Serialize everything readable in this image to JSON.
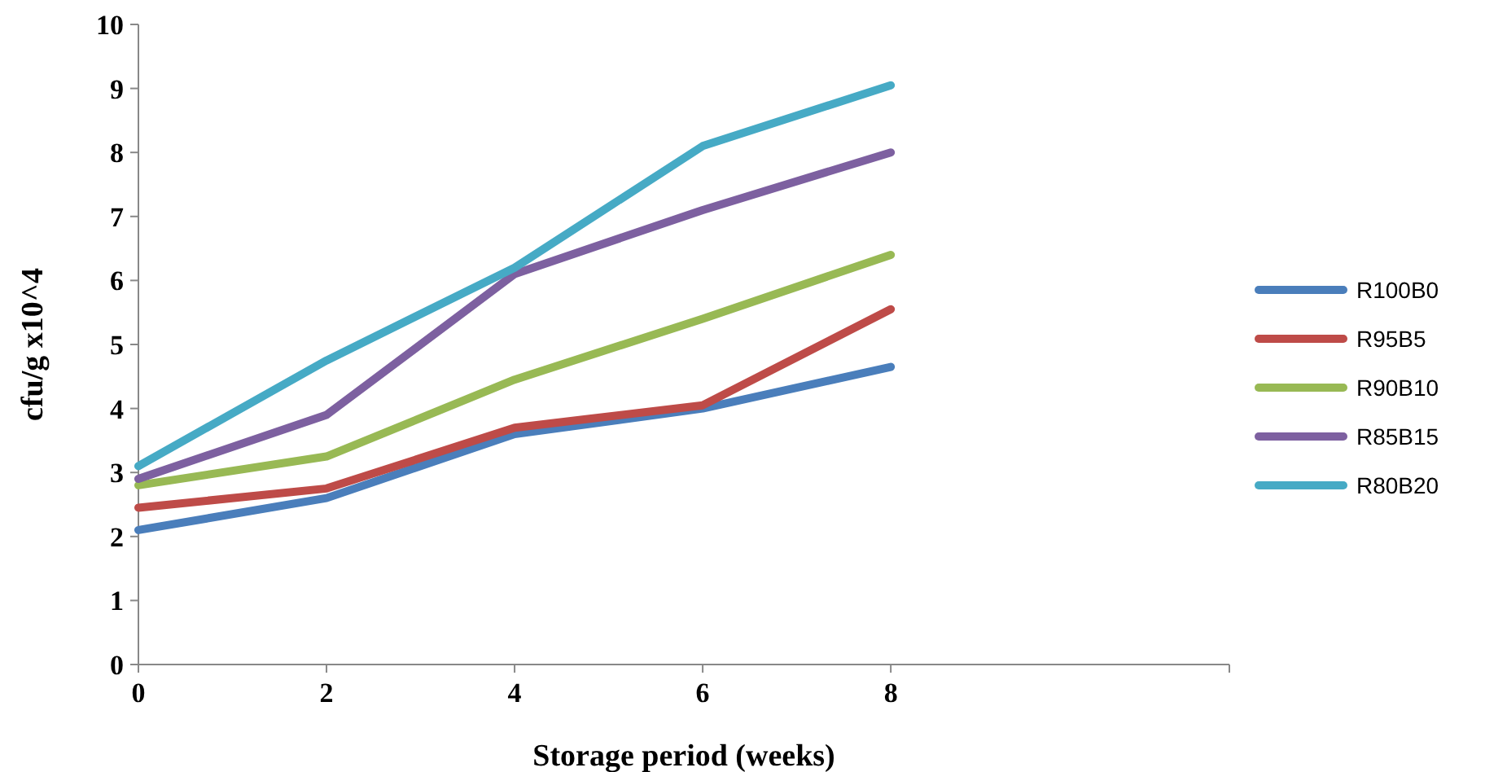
{
  "chart_data": {
    "type": "line",
    "xlabel": "Storage period (weeks)",
    "ylabel": "cfu/g x10^4",
    "x": [
      0,
      2,
      4,
      6,
      8
    ],
    "xlim": [
      0,
      11.6
    ],
    "xticks": [
      0,
      2,
      4,
      6,
      8
    ],
    "ylim": [
      0,
      10
    ],
    "yticks": [
      0,
      1,
      2,
      3,
      4,
      5,
      6,
      7,
      8,
      9,
      10
    ],
    "grid": false,
    "legend": "right",
    "marker": "none",
    "line_style": "solid",
    "series": [
      {
        "name": "R100B0",
        "color": "#4a7ebb",
        "values": [
          2.1,
          2.6,
          3.6,
          4.0,
          4.65
        ]
      },
      {
        "name": "R95B5",
        "color": "#be4b48",
        "values": [
          2.45,
          2.75,
          3.7,
          4.05,
          5.55
        ]
      },
      {
        "name": "R90B10",
        "color": "#98b954",
        "values": [
          2.8,
          3.25,
          4.45,
          5.4,
          6.4
        ]
      },
      {
        "name": "R85B15",
        "color": "#7d60a0",
        "values": [
          2.9,
          3.9,
          6.1,
          7.1,
          8.0
        ]
      },
      {
        "name": "R80B20",
        "color": "#46aac5",
        "values": [
          3.1,
          4.75,
          6.2,
          8.1,
          9.05
        ]
      }
    ]
  }
}
